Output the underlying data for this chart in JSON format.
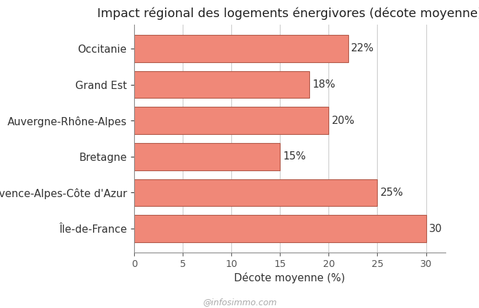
{
  "title": "Impact régional des logements énergivores (décote moyenne)",
  "xlabel": "Décote moyenne (%)",
  "watermark": "@infosimmo.com",
  "categories": [
    "Île-de-France",
    "Provence-Alpes-Côte d'Azur",
    "Bretagne",
    "Auvergne-Rhône-Alpes",
    "Grand Est",
    "Occitanie"
  ],
  "values": [
    30,
    25,
    15,
    20,
    18,
    22
  ],
  "labels": [
    "30",
    "25%",
    "15%",
    "20%",
    "18%",
    "22%"
  ],
  "bar_color": "#F08878",
  "bar_edgecolor": "#b05545",
  "xlim": [
    0,
    32
  ],
  "xticks": [
    0,
    5,
    10,
    15,
    20,
    25,
    30
  ],
  "title_fontsize": 13,
  "ylabel_fontsize": 11,
  "xlabel_fontsize": 11,
  "tick_fontsize": 10,
  "watermark_fontsize": 9,
  "annot_fontsize": 11,
  "background_color": "#ffffff",
  "grid_color": "#cccccc",
  "bar_height": 0.75
}
